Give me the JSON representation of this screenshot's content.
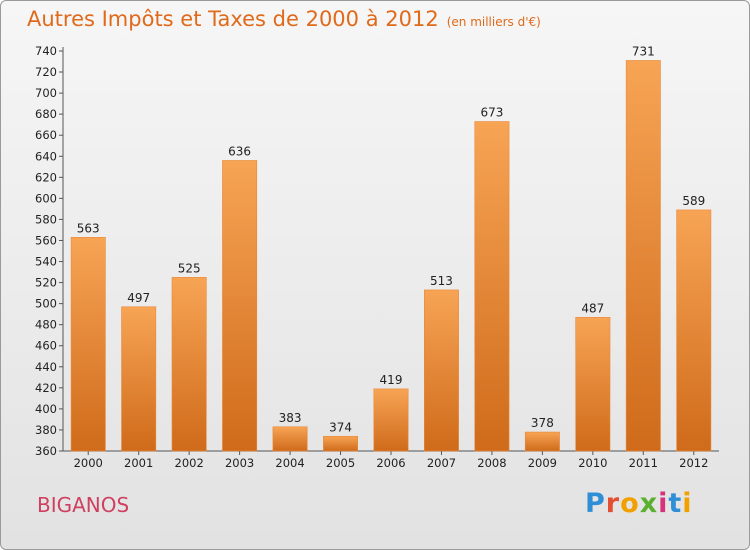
{
  "header": {
    "title": "Autres Impôts et Taxes de 2000 à 2012",
    "unit": "(en milliers d'€)"
  },
  "footer": {
    "place": "BIGANOS",
    "logo_letters": [
      "P",
      "r",
      "o",
      "x",
      "i",
      "t",
      "i"
    ]
  },
  "colors": {
    "bar_top": "#f7a455",
    "bar_bottom": "#cf6b1a",
    "title": "#e06a1a",
    "place": "#d04060"
  },
  "chart_data": {
    "type": "bar",
    "title": "Autres Impôts et Taxes de 2000 à 2012",
    "subtitle": "(en milliers d'€)",
    "xlabel": "",
    "ylabel": "",
    "categories": [
      "2000",
      "2001",
      "2002",
      "2003",
      "2004",
      "2005",
      "2006",
      "2007",
      "2008",
      "2009",
      "2010",
      "2011",
      "2012"
    ],
    "values": [
      563,
      497,
      525,
      636,
      383,
      374,
      419,
      513,
      673,
      378,
      487,
      731,
      589
    ],
    "ylim": [
      360,
      740
    ],
    "ytick_step": 20,
    "grid": false,
    "legend": "none"
  }
}
